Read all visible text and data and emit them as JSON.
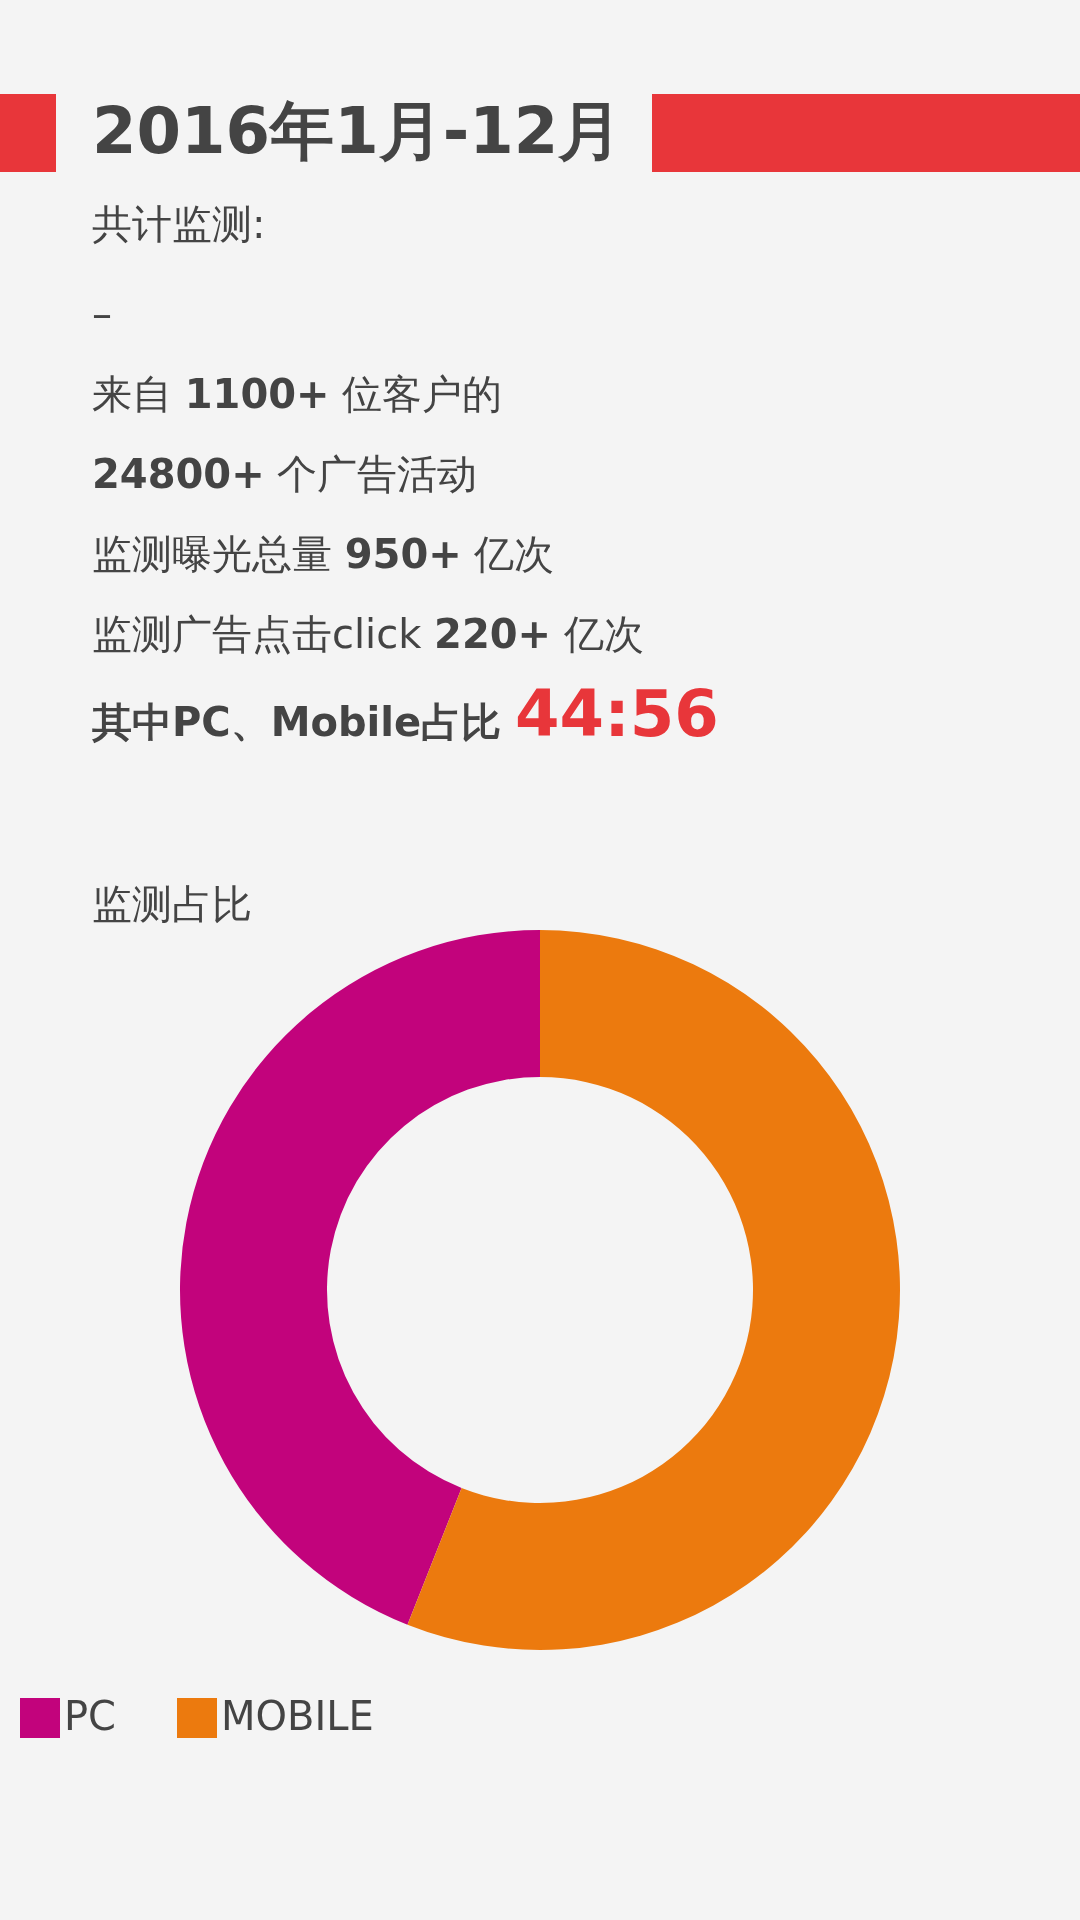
{
  "chart_data": {
    "type": "donut",
    "title": "2016年1月-12月",
    "subtitle": "共计监测:",
    "annotations": [
      "–",
      "来自 1100+ 位客户的",
      "24800+ 个广告活动",
      "监测曝光总量 950+ 亿次",
      "监测广告点击click 220+ 亿次",
      "其中PC、Mobile占比 44:56",
      "监测占比"
    ],
    "categories": [
      "PC",
      "MOBILE"
    ],
    "values": [
      44,
      56
    ],
    "colors": [
      "#c2037c",
      "#ec7a0e"
    ],
    "legend": "bottom"
  }
}
